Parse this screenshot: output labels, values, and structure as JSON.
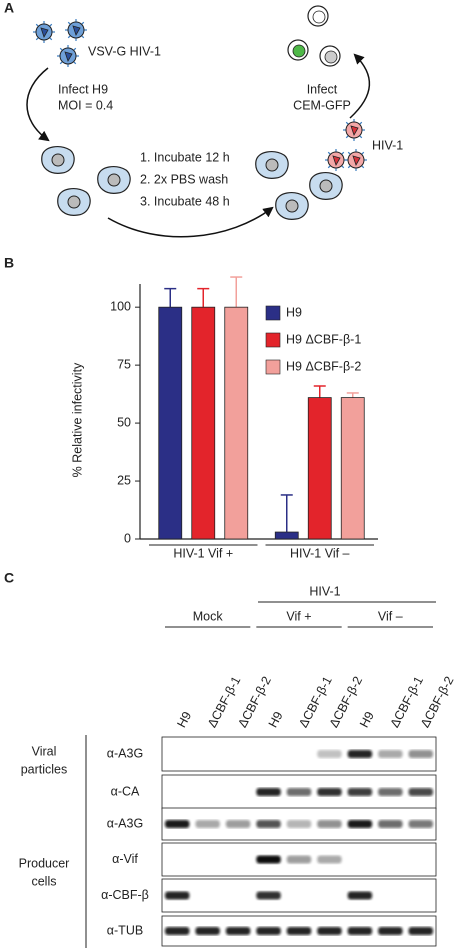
{
  "panel_labels": [
    "A",
    "B",
    "C"
  ],
  "panel_a": {
    "virus_top": "VSV-G HIV-1",
    "infect_h9": [
      "Infect H9",
      "MOI = 0.4"
    ],
    "steps": [
      "1. Incubate 12 h",
      "2. 2x PBS wash",
      "3. Incubate 48 h"
    ],
    "virus_bottom": "HIV-1",
    "infect_cem": [
      "Infect",
      "CEM-GFP"
    ]
  },
  "chart_data": {
    "type": "bar",
    "ylabel": "% Relative infectivity",
    "categories": [
      "HIV-1 Vif +",
      "HIV-1 Vif –"
    ],
    "series": [
      {
        "name": "H9",
        "color": "#2b2f86",
        "values": [
          100,
          3
        ],
        "errors": [
          8,
          16
        ]
      },
      {
        "name": "H9 ΔCBF-β-1",
        "color": "#e3242b",
        "values": [
          100,
          61
        ],
        "errors": [
          8,
          5
        ]
      },
      {
        "name": "H9 ΔCBF-β-2",
        "color": "#f2a09b",
        "values": [
          100,
          61
        ],
        "errors": [
          13,
          2
        ]
      }
    ],
    "ylim": [
      0,
      110
    ],
    "yticks": [
      0,
      25,
      50,
      75,
      100
    ],
    "legend": "upper right"
  },
  "panel_c": {
    "header": "HIV-1",
    "groups": [
      "Mock",
      "Vif +",
      "Vif –"
    ],
    "lanes": [
      "H9",
      "ΔCBF-β-1",
      "ΔCBF-β-2",
      "H9",
      "ΔCBF-β-1",
      "ΔCBF-β-2",
      "H9",
      "ΔCBF-β-1",
      "ΔCBF-β-2"
    ],
    "sections": [
      {
        "label": [
          "Viral",
          "particles"
        ],
        "rows": [
          "α-A3G",
          "α-CA"
        ]
      },
      {
        "label": [
          "Producer",
          "cells"
        ],
        "rows": [
          "α-A3G",
          "α-Vif",
          "α-CBF-β",
          "α-TUB"
        ]
      }
    ]
  }
}
